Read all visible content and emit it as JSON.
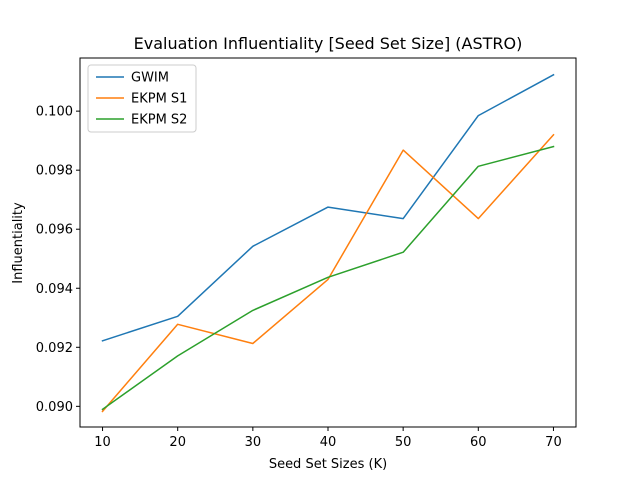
{
  "chart_data": {
    "type": "line",
    "title": "Evaluation Influentiality [Seed Set Size] (ASTRO)",
    "xlabel": "Seed Set Sizes (K)",
    "ylabel": "Influentiality",
    "x": [
      10,
      20,
      30,
      40,
      50,
      60,
      70
    ],
    "xticks": [
      "10",
      "20",
      "30",
      "40",
      "50",
      "60",
      "70"
    ],
    "yticks": [
      "0.090",
      "0.092",
      "0.094",
      "0.096",
      "0.098",
      "0.100"
    ],
    "xlim": [
      7,
      73
    ],
    "ylim": [
      0.0893,
      0.1018
    ],
    "grid": false,
    "legend_position": "upper-left",
    "series": [
      {
        "name": "GWIM",
        "color": "#1f77b4",
        "values": [
          0.09222,
          0.09305,
          0.09542,
          0.09675,
          0.09636,
          0.09985,
          0.10123
        ]
      },
      {
        "name": "EKPM S1",
        "color": "#ff7f0e",
        "values": [
          0.08983,
          0.09278,
          0.09213,
          0.0943,
          0.09868,
          0.09636,
          0.0992
        ]
      },
      {
        "name": "EKPM S2",
        "color": "#2ca02c",
        "values": [
          0.0899,
          0.09171,
          0.09325,
          0.09437,
          0.09522,
          0.09813,
          0.0988
        ]
      }
    ]
  }
}
